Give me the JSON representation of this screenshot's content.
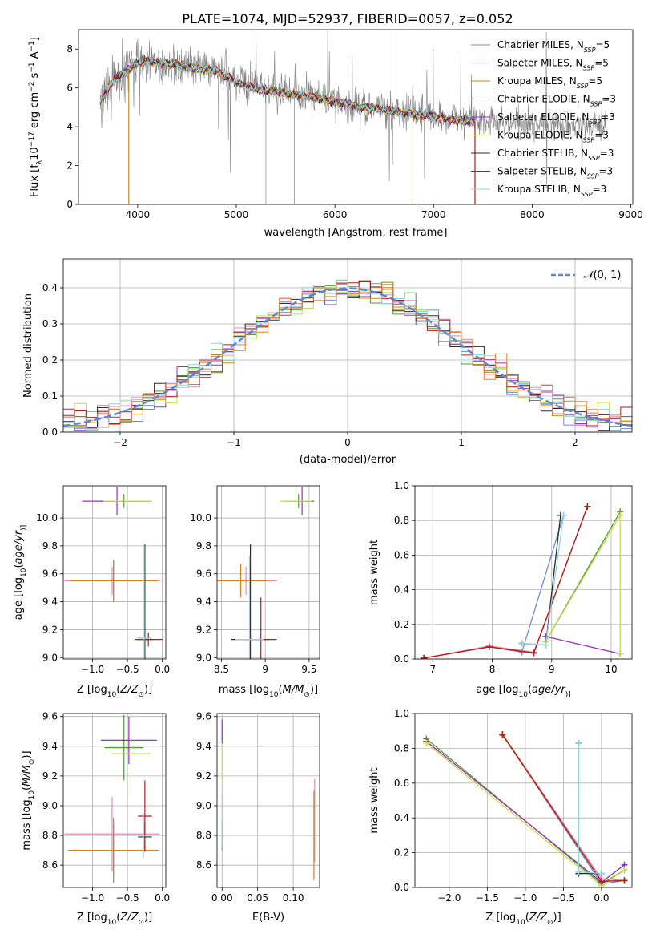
{
  "figure_title": "PLATE=1074, MJD=52937, FIBERID=0057, z=0.052",
  "colors": {
    "Chabrier MILES": "#6a8fd6",
    "Salpeter MILES": "#e889bb",
    "Kroupa MILES": "#c8871e",
    "Chabrier ELODIE": "#4f9a3c",
    "Salpeter ELODIE": "#9b2fc0",
    "Kroupa ELODIE": "#c9dc4a",
    "Chabrier STELIB": "#2b2b2b",
    "Salpeter STELIB": "#b31b1b",
    "Kroupa STELIB": "#8fd3e0",
    "data": "#808080",
    "extra": "#ee7a3a",
    "normal": "#5b87d6"
  },
  "chart_data": [
    {
      "id": "spectrum",
      "type": "line",
      "title": "PLATE=1074, MJD=52937, FIBERID=0057, z=0.052",
      "xlabel": "wavelength [Angstrom, rest frame]",
      "ylabel_parts": [
        "Flux [f",
        "λ",
        "10",
        "−17",
        " erg cm",
        "−2",
        " s",
        "−1",
        " A",
        "−1",
        "]"
      ],
      "xlim": [
        3400,
        9020
      ],
      "ylim": [
        0,
        9
      ],
      "xticks": [
        4000,
        5000,
        6000,
        7000,
        8000,
        9000
      ],
      "yticks": [
        0,
        2,
        4,
        6,
        8
      ],
      "grid": false,
      "legend_position": "right",
      "legend": [
        {
          "name": "Chabrier MILES",
          "nssp": "=5"
        },
        {
          "name": "Salpeter MILES",
          "nssp": "=5"
        },
        {
          "name": "Kroupa MILES",
          "nssp": "=5"
        },
        {
          "name": "Chabrier ELODIE",
          "nssp": "=3"
        },
        {
          "name": "Salpeter ELODIE",
          "nssp": "=3"
        },
        {
          "name": "Kroupa ELODIE",
          "nssp": "=3"
        },
        {
          "name": "Chabrier STELIB",
          "nssp": "=3"
        },
        {
          "name": "Salpeter STELIB",
          "nssp": "=3"
        },
        {
          "name": "Kroupa STELIB",
          "nssp": "=3"
        }
      ],
      "continuum": {
        "x": [
          3620,
          3700,
          3800,
          3900,
          4000,
          4100,
          4200,
          4400,
          4600,
          4800,
          4860,
          5000,
          5200,
          5500,
          5800,
          6000,
          6300,
          6600,
          6900,
          7100,
          7300,
          7400
        ],
        "y": [
          5.2,
          6.0,
          6.6,
          6.9,
          7.3,
          7.4,
          7.3,
          7.2,
          7.0,
          6.9,
          6.7,
          6.3,
          6.0,
          5.7,
          5.5,
          5.3,
          5.0,
          4.8,
          4.6,
          4.45,
          4.3,
          4.25
        ]
      },
      "data_extent": [
        3620,
        8750
      ],
      "model_spikes": [
        {
          "series": "Kroupa MILES",
          "x": 3910,
          "y": 0
        },
        {
          "series": "Kroupa ELODIE",
          "x": 6790,
          "y": 0
        },
        {
          "series": "Salpeter STELIB",
          "x": 7420,
          "y": 0
        }
      ]
    },
    {
      "id": "residuals",
      "type": "histogram",
      "xlabel": "(data-model)/error",
      "ylabel": "Normed distribution",
      "xlim": [
        -2.5,
        2.5
      ],
      "ylim": [
        0,
        0.48
      ],
      "xticks": [
        -2,
        -1,
        0,
        1,
        2
      ],
      "xticklabels": [
        "−2",
        "−1",
        "0",
        "1",
        "2"
      ],
      "yticks": [
        0.0,
        0.1,
        0.2,
        0.3,
        0.4
      ],
      "grid": true,
      "legend": [
        {
          "label_parts": [
            "𝒩",
            "(0, 1)"
          ]
        }
      ],
      "legend_position": "top-right",
      "bin_width": 0.1
    },
    {
      "id": "age-Z",
      "type": "errorbar",
      "xlabel_parts": [
        "Z [log",
        "10",
        "(",
        "Z/Z",
        "⊙",
        ")]"
      ],
      "ylabel_parts": [
        "age  [log",
        "10",
        "(",
        "age/yr",
        ")]"
      ],
      "xlim": [
        -1.42,
        0.05
      ],
      "ylim": [
        8.99,
        10.23
      ],
      "xticks": [
        -1.0,
        -0.5,
        0.0
      ],
      "xticklabels": [
        "−1.0",
        "−0.5",
        "0.0"
      ],
      "yticks": [
        9.0,
        9.2,
        9.4,
        9.6,
        9.8,
        10.0
      ],
      "grid": true
    },
    {
      "id": "age-mass",
      "type": "errorbar",
      "xlabel_parts": [
        "mass [log",
        "10",
        "(",
        "M/M",
        "⊙",
        ")]"
      ],
      "xlim": [
        8.45,
        9.62
      ],
      "ylim": [
        8.99,
        10.23
      ],
      "xticks": [
        8.5,
        9.0,
        9.5
      ],
      "yticks": [
        9.0,
        9.2,
        9.4,
        9.6,
        9.8,
        10.0
      ],
      "grid": true
    },
    {
      "id": "mw-age",
      "type": "line",
      "xlabel_parts": [
        "age  [log",
        "10",
        "(",
        "age/yr",
        ")]"
      ],
      "ylabel": "mass weight",
      "xlim": [
        6.7,
        10.35
      ],
      "ylim": [
        0,
        1
      ],
      "xticks": [
        7,
        8,
        9,
        10
      ],
      "yticks": [
        0.0,
        0.2,
        0.4,
        0.6,
        0.8,
        1.0
      ],
      "grid": true,
      "series": [
        {
          "name": "Chabrier MILES",
          "x": [
            6.85,
            7.95,
            8.5,
            9.2
          ],
          "y": [
            0.005,
            0.07,
            0.04,
            0.83
          ]
        },
        {
          "name": "Salpeter MILES",
          "x": [
            6.85,
            7.95,
            8.7,
            9.6
          ],
          "y": [
            0.005,
            0.075,
            0.04,
            0.88
          ]
        },
        {
          "name": "Kroupa MILES",
          "x": [
            6.85,
            7.95,
            8.7,
            9.6
          ],
          "y": [
            0.005,
            0.07,
            0.035,
            0.88
          ]
        },
        {
          "name": "Chabrier ELODIE",
          "x": [
            8.9,
            10.15
          ],
          "y": [
            0.1,
            0.85
          ]
        },
        {
          "name": "Salpeter ELODIE",
          "x": [
            8.9,
            10.15
          ],
          "y": [
            0.13,
            0.03
          ]
        },
        {
          "name": "Kroupa ELODIE",
          "x": [
            8.9,
            10.15,
            10.15
          ],
          "y": [
            0.1,
            0.83,
            0.03
          ]
        },
        {
          "name": "Chabrier STELIB",
          "x": [
            8.5,
            8.9,
            9.15
          ],
          "y": [
            0.09,
            0.08,
            0.83
          ]
        },
        {
          "name": "Salpeter STELIB",
          "x": [
            6.85,
            7.95,
            8.7,
            9.6
          ],
          "y": [
            0.005,
            0.07,
            0.035,
            0.88
          ]
        },
        {
          "name": "Kroupa STELIB",
          "x": [
            8.5,
            8.9,
            9.2
          ],
          "y": [
            0.09,
            0.08,
            0.83
          ]
        }
      ]
    },
    {
      "id": "mass-Z",
      "type": "errorbar",
      "xlabel_parts": [
        "Z [log",
        "10",
        "(",
        "Z/Z",
        "⊙",
        ")]"
      ],
      "ylabel_parts": [
        "mass [log",
        "10",
        "(",
        "M/M",
        "⊙",
        ")]"
      ],
      "xlim": [
        -1.42,
        0.05
      ],
      "ylim": [
        8.45,
        9.62
      ],
      "xticks": [
        -1.0,
        -0.5,
        0.0
      ],
      "xticklabels": [
        "−1.0",
        "−0.5",
        "0.0"
      ],
      "yticks": [
        8.6,
        8.8,
        9.0,
        9.2,
        9.4,
        9.6
      ],
      "grid": true
    },
    {
      "id": "mass-ebv",
      "type": "errorbar",
      "xlabel": "E(B-V)",
      "xlim": [
        -0.007,
        0.137
      ],
      "ylim": [
        8.45,
        9.62
      ],
      "xticks": [
        0.0,
        0.05,
        0.1
      ],
      "xticklabels": [
        "0.00",
        "0.05",
        "0.10"
      ],
      "yticks": [
        8.6,
        8.8,
        9.0,
        9.2,
        9.4,
        9.6
      ],
      "grid": true
    },
    {
      "id": "mw-Z",
      "type": "line",
      "xlabel_parts": [
        "Z [log",
        "10",
        "(",
        "Z/Z",
        "⊙",
        ")]"
      ],
      "ylabel": "mass weight",
      "xlim": [
        -2.45,
        0.4
      ],
      "ylim": [
        0,
        1
      ],
      "xticks": [
        -2.0,
        -1.5,
        -1.0,
        -0.5,
        0.0
      ],
      "xticklabels": [
        "−2.0",
        "−1.5",
        "−1.0",
        "−0.5",
        "0.0"
      ],
      "yticks": [
        0.0,
        0.2,
        0.4,
        0.6,
        0.8,
        1.0
      ],
      "grid": true,
      "series": [
        {
          "name": "Chabrier MILES",
          "x": [
            -1.3,
            0.0,
            0.3
          ],
          "y": [
            0.88,
            0.02,
            0.04
          ]
        },
        {
          "name": "Salpeter MILES",
          "x": [
            -1.3,
            0.0,
            0.3
          ],
          "y": [
            0.88,
            0.05,
            0.04
          ]
        },
        {
          "name": "Kroupa MILES",
          "x": [
            -1.3,
            0.0,
            0.3
          ],
          "y": [
            0.875,
            0.035,
            0.04
          ]
        },
        {
          "name": "Chabrier ELODIE",
          "x": [
            -2.3,
            0.0,
            0.3
          ],
          "y": [
            0.855,
            0.02,
            0.1
          ]
        },
        {
          "name": "Salpeter ELODIE",
          "x": [
            -2.3,
            0.0,
            0.3
          ],
          "y": [
            0.84,
            0.03,
            0.13
          ]
        },
        {
          "name": "Kroupa ELODIE",
          "x": [
            -2.3,
            0.0,
            0.3
          ],
          "y": [
            0.83,
            0.01,
            0.1
          ]
        },
        {
          "name": "Chabrier STELIB",
          "x": [
            -0.3,
            -0.3,
            0.0
          ],
          "y": [
            0.83,
            0.08,
            0.08
          ]
        },
        {
          "name": "Salpeter STELIB",
          "x": [
            -1.3,
            0.0,
            0.3
          ],
          "y": [
            0.88,
            0.035,
            0.04
          ]
        },
        {
          "name": "Kroupa STELIB",
          "x": [
            -0.3,
            -0.3,
            0.0
          ],
          "y": [
            0.83,
            0.09,
            0.08
          ]
        }
      ]
    }
  ]
}
